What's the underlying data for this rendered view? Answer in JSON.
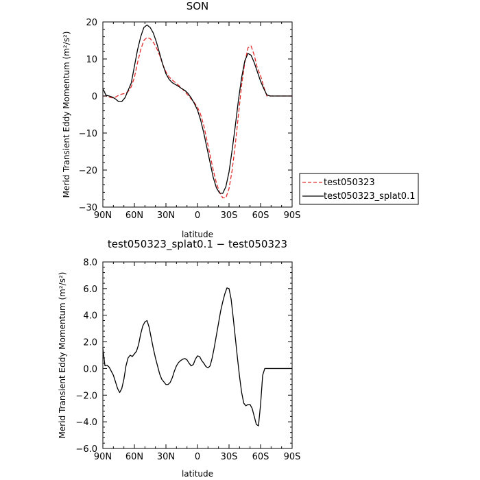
{
  "chart_data": [
    {
      "type": "line",
      "title": "SON",
      "xlabel": "latitude",
      "ylabel": "Merid Transient Eddy Momentum (m²/s²)",
      "xlim": [
        90,
        -90
      ],
      "ylim": [
        -30,
        20
      ],
      "xtick_values": [
        90,
        60,
        30,
        0,
        -30,
        -60,
        -90
      ],
      "xtick_labels": [
        "90N",
        "60N",
        "30N",
        "0",
        "30S",
        "60S",
        "90S"
      ],
      "ytick_values": [
        -30,
        -20,
        -10,
        0,
        10,
        20
      ],
      "ytick_labels": [
        "−30",
        "−20",
        "−10",
        "0",
        "10",
        "20"
      ],
      "legend": "outside-right",
      "series": [
        {
          "name": "test050323",
          "color": "#e32b2b",
          "dash": "dashed",
          "x": [
            90,
            87,
            84,
            81,
            78,
            75,
            72,
            69,
            66,
            63,
            60,
            57,
            54,
            51,
            48,
            45,
            42,
            39,
            36,
            33,
            30,
            27,
            24,
            21,
            18,
            15,
            12,
            9,
            6,
            3,
            0,
            -3,
            -6,
            -9,
            -12,
            -15,
            -18,
            -21,
            -24,
            -27,
            -30,
            -33,
            -36,
            -39,
            -42,
            -45,
            -48,
            -51,
            -54,
            -57,
            -60,
            -63,
            -66,
            -69,
            -72,
            -75,
            -78,
            -81,
            -84,
            -87,
            -90
          ],
          "y": [
            0,
            0,
            -0.3,
            -0.5,
            -0.3,
            0.2,
            0.5,
            0.7,
            1.2,
            2.5,
            5,
            9,
            12.5,
            15,
            15.8,
            15.5,
            14.5,
            13,
            11,
            8.5,
            6.5,
            5.2,
            4.3,
            3.6,
            2.9,
            2.1,
            1.2,
            0.2,
            -0.8,
            -1.8,
            -3,
            -5,
            -8,
            -12,
            -16,
            -20,
            -23.5,
            -26,
            -27.5,
            -27.5,
            -25,
            -20,
            -13,
            -5,
            3,
            9,
            13,
            13.5,
            11,
            7.5,
            5.5,
            2.5,
            0,
            0,
            0,
            0,
            0,
            0,
            0,
            0,
            0
          ]
        },
        {
          "name": "test050323_splat0.1",
          "color": "#000000",
          "dash": "solid",
          "x": [
            90,
            87,
            84,
            81,
            78,
            75,
            72,
            69,
            66,
            63,
            60,
            57,
            54,
            51,
            48,
            45,
            42,
            39,
            36,
            33,
            30,
            27,
            24,
            21,
            18,
            15,
            12,
            9,
            6,
            3,
            0,
            -3,
            -6,
            -9,
            -12,
            -15,
            -18,
            -21,
            -24,
            -27,
            -30,
            -33,
            -36,
            -39,
            -42,
            -45,
            -48,
            -51,
            -54,
            -57,
            -60,
            -63,
            -66,
            -69,
            -72,
            -75,
            -78,
            -81,
            -84,
            -87,
            -90
          ],
          "y": [
            2,
            0.2,
            0,
            -0.3,
            -0.8,
            -1.5,
            -1.5,
            -0.5,
            1.5,
            3.5,
            8,
            12.5,
            16,
            18.5,
            19.2,
            18.5,
            17,
            14.5,
            11.5,
            8.5,
            6,
            4.5,
            3.6,
            3.1,
            2.6,
            2,
            1.5,
            0.7,
            -0.5,
            -2,
            -3.8,
            -6.5,
            -10,
            -14,
            -18,
            -22,
            -24.8,
            -26.2,
            -26.3,
            -24.5,
            -20.5,
            -14.5,
            -8,
            -1,
            5,
            9.5,
            11.5,
            11,
            9,
            6.5,
            4,
            2,
            0.3,
            0,
            0,
            0,
            0,
            0,
            0,
            0,
            0
          ]
        }
      ]
    },
    {
      "type": "line",
      "title": "test050323_splat0.1 − test050323",
      "xlabel": "latitude",
      "ylabel": "Merid Transient Eddy Momentum (m²/s²)",
      "xlim": [
        90,
        -90
      ],
      "ylim": [
        -6,
        8
      ],
      "xtick_values": [
        90,
        60,
        30,
        0,
        -30,
        -60,
        -90
      ],
      "xtick_labels": [
        "90N",
        "60N",
        "30N",
        "0",
        "30S",
        "60S",
        "90S"
      ],
      "ytick_values": [
        -6,
        -4,
        -2,
        0,
        2,
        4,
        6,
        8
      ],
      "ytick_labels": [
        "−6.0",
        "−4.0",
        "−2.0",
        "0.0",
        "2.0",
        "4.0",
        "6.0",
        "8.0"
      ],
      "series": [
        {
          "color": "#000000",
          "dash": "solid",
          "x": [
            90,
            88,
            86,
            84,
            82,
            80,
            78,
            76,
            74,
            72,
            70,
            68,
            66,
            64,
            62,
            60,
            58,
            56,
            54,
            52,
            50,
            48,
            46,
            44,
            42,
            40,
            38,
            36,
            34,
            32,
            30,
            28,
            26,
            24,
            22,
            20,
            18,
            16,
            14,
            12,
            10,
            8,
            6,
            4,
            2,
            0,
            -2,
            -4,
            -6,
            -8,
            -10,
            -12,
            -14,
            -16,
            -18,
            -20,
            -22,
            -24,
            -26,
            -28,
            -30,
            -32,
            -34,
            -36,
            -38,
            -40,
            -42,
            -44,
            -46,
            -48,
            -50,
            -52,
            -54,
            -56,
            -58,
            -60,
            -62,
            -64,
            -66,
            -68,
            -70,
            -72,
            -74,
            -76,
            -78,
            -80,
            -82,
            -84,
            -86,
            -88,
            -90
          ],
          "y": [
            1.5,
            0.2,
            0.25,
            0.1,
            -0.2,
            -0.5,
            -1.0,
            -1.5,
            -1.8,
            -1.5,
            -0.8,
            0.2,
            0.8,
            1.0,
            0.9,
            1.1,
            1.3,
            1.8,
            2.6,
            3.2,
            3.5,
            3.6,
            3.1,
            2.3,
            1.5,
            0.8,
            0.2,
            -0.4,
            -0.8,
            -1.0,
            -1.2,
            -1.2,
            -1.05,
            -0.7,
            -0.2,
            0.2,
            0.45,
            0.6,
            0.7,
            0.75,
            0.65,
            0.4,
            0.2,
            0.3,
            0.7,
            0.95,
            0.9,
            0.6,
            0.4,
            0.15,
            0.05,
            0.2,
            0.8,
            1.6,
            2.5,
            3.4,
            4.3,
            5.0,
            5.6,
            6.05,
            6.0,
            5.2,
            3.8,
            2.3,
            0.8,
            -0.6,
            -1.8,
            -2.6,
            -2.8,
            -2.7,
            -2.7,
            -3.0,
            -3.6,
            -4.2,
            -4.3,
            -2.7,
            -0.5,
            0.0,
            0.0,
            0.0,
            0.0,
            0.0,
            0.0,
            0.0,
            0.0,
            0.0,
            0.0,
            0.0,
            0.0,
            0.0,
            0.0
          ]
        }
      ]
    }
  ]
}
